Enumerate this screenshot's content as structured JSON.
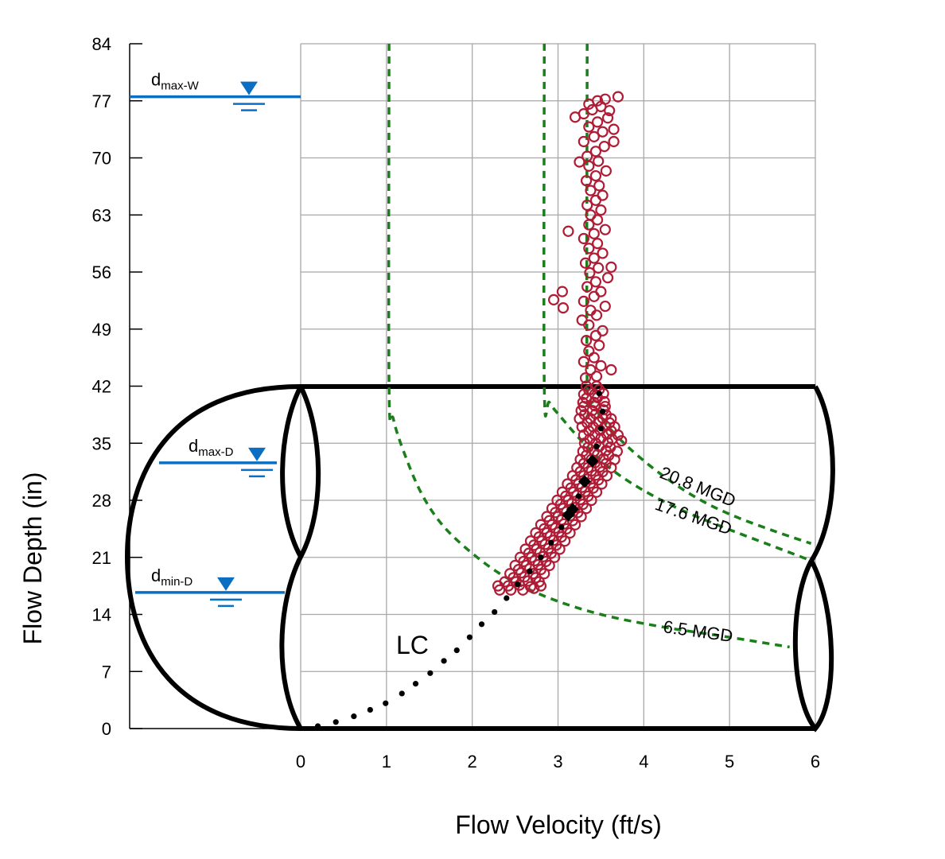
{
  "chart_data": {
    "type": "scatter",
    "xlabel": "Flow Velocity (ft/s)",
    "ylabel": "Flow Depth (in)",
    "xlim": [
      0,
      6
    ],
    "ylim": [
      0,
      84
    ],
    "x_ticks": [
      "0",
      "1",
      "2",
      "3",
      "4",
      "5",
      "6"
    ],
    "y_ticks": [
      "0",
      "7",
      "14",
      "21",
      "28",
      "35",
      "42",
      "49",
      "56",
      "63",
      "70",
      "77",
      "84"
    ],
    "grid": true,
    "colors": {
      "observed": "#b01c35",
      "flow_curves": "#1a7f1a",
      "water_level": "#0a6fc2",
      "pipe": "#000000"
    },
    "water_levels": [
      {
        "label": "d",
        "sub": "max-W",
        "depth": 77.5
      },
      {
        "label": "d",
        "sub": "max-D",
        "depth": 32.6
      },
      {
        "label": "d",
        "sub": "min-D",
        "depth": 16.7
      }
    ],
    "flow_curves": [
      {
        "label": "6.5 MGD",
        "points": [
          [
            1.03,
            84
          ],
          [
            1.03,
            42
          ],
          [
            1.08,
            38
          ],
          [
            1.2,
            34
          ],
          [
            1.4,
            29
          ],
          [
            1.65,
            25
          ],
          [
            2.0,
            21.5
          ],
          [
            2.4,
            18.5
          ],
          [
            2.9,
            16.0
          ],
          [
            3.5,
            14.0
          ],
          [
            4.2,
            12.5
          ],
          [
            5.0,
            11.2
          ],
          [
            5.7,
            10.0
          ]
        ]
      },
      {
        "label": "17.6 MGD",
        "points": [
          [
            2.84,
            84
          ],
          [
            2.84,
            42
          ],
          [
            2.9,
            40
          ],
          [
            3.05,
            38
          ],
          [
            3.3,
            35
          ],
          [
            3.6,
            32
          ],
          [
            3.95,
            29.5
          ],
          [
            4.4,
            27
          ],
          [
            4.9,
            24.8
          ],
          [
            5.45,
            22.6
          ],
          [
            5.95,
            20.6
          ]
        ]
      },
      {
        "label": "20.8 MGD",
        "points": [
          [
            3.34,
            84
          ],
          [
            3.34,
            42
          ],
          [
            3.4,
            40
          ],
          [
            3.55,
            37.5
          ],
          [
            3.82,
            34.5
          ],
          [
            4.2,
            31.2
          ],
          [
            4.6,
            28.4
          ],
          [
            5.0,
            26.3
          ],
          [
            5.5,
            24.3
          ],
          [
            5.95,
            22.7
          ]
        ]
      }
    ],
    "lc_label": "LC",
    "lc_points": [
      [
        0.2,
        0.3
      ],
      [
        0.41,
        0.8
      ],
      [
        0.62,
        1.5
      ],
      [
        0.81,
        2.3
      ],
      [
        0.99,
        3.1
      ],
      [
        1.18,
        4.3
      ],
      [
        1.34,
        5.5
      ],
      [
        1.51,
        6.8
      ],
      [
        1.67,
        8.3
      ],
      [
        1.82,
        9.6
      ],
      [
        1.97,
        11.2
      ],
      [
        2.11,
        12.8
      ],
      [
        2.26,
        14.3
      ],
      [
        2.4,
        16.0
      ],
      [
        2.53,
        17.7
      ],
      [
        2.67,
        19.3
      ],
      [
        2.8,
        21.0
      ],
      [
        2.92,
        22.8
      ],
      [
        3.04,
        24.7
      ],
      [
        3.24,
        28.5
      ],
      [
        3.45,
        34.6
      ],
      [
        3.5,
        36.8
      ],
      [
        3.52,
        38.9
      ],
      [
        3.48,
        41.1
      ]
    ],
    "diamond_points": [
      [
        3.4,
        32.8
      ],
      [
        3.31,
        30.3
      ],
      [
        3.17,
        26.9
      ],
      [
        3.12,
        26.2
      ]
    ],
    "observed_points": [
      [
        2.32,
        17
      ],
      [
        2.45,
        17
      ],
      [
        2.59,
        17
      ],
      [
        2.72,
        17.2
      ],
      [
        2.42,
        17.5
      ],
      [
        2.55,
        17.6
      ],
      [
        2.68,
        17.4
      ],
      [
        2.38,
        18
      ],
      [
        2.51,
        18
      ],
      [
        2.65,
        18.1
      ],
      [
        2.78,
        18
      ],
      [
        2.48,
        18.5
      ],
      [
        2.61,
        18.6
      ],
      [
        2.74,
        18.5
      ],
      [
        2.44,
        19
      ],
      [
        2.57,
        19.1
      ],
      [
        2.71,
        19
      ],
      [
        2.84,
        19
      ],
      [
        2.54,
        19.5
      ],
      [
        2.67,
        19.6
      ],
      [
        2.8,
        19.5
      ],
      [
        2.5,
        20
      ],
      [
        2.63,
        20
      ],
      [
        2.77,
        20.1
      ],
      [
        2.9,
        20
      ],
      [
        2.6,
        20.5
      ],
      [
        2.73,
        20.6
      ],
      [
        2.86,
        20.5
      ],
      [
        2.56,
        21
      ],
      [
        2.69,
        21
      ],
      [
        2.83,
        21.1
      ],
      [
        2.96,
        21
      ],
      [
        2.66,
        21.5
      ],
      [
        2.79,
        21.6
      ],
      [
        2.92,
        21.5
      ],
      [
        2.62,
        22
      ],
      [
        2.75,
        22
      ],
      [
        2.89,
        22.1
      ],
      [
        3.02,
        22
      ],
      [
        2.72,
        22.5
      ],
      [
        2.85,
        22.6
      ],
      [
        2.98,
        22.5
      ],
      [
        2.68,
        23
      ],
      [
        2.81,
        23
      ],
      [
        2.95,
        23.1
      ],
      [
        3.08,
        23
      ],
      [
        2.78,
        23.5
      ],
      [
        2.91,
        23.6
      ],
      [
        3.04,
        23.5
      ],
      [
        2.74,
        24
      ],
      [
        2.87,
        24
      ],
      [
        3.01,
        24.1
      ],
      [
        3.14,
        24
      ],
      [
        2.84,
        24.5
      ],
      [
        2.97,
        24.6
      ],
      [
        3.1,
        24.5
      ],
      [
        2.8,
        25
      ],
      [
        2.93,
        25
      ],
      [
        3.07,
        25.1
      ],
      [
        3.2,
        25
      ],
      [
        2.9,
        25.5
      ],
      [
        3.04,
        25.6
      ],
      [
        3.17,
        25.5
      ],
      [
        2.87,
        26
      ],
      [
        3.0,
        26
      ],
      [
        3.14,
        26.1
      ],
      [
        3.27,
        26
      ],
      [
        2.97,
        26.5
      ],
      [
        3.1,
        26.6
      ],
      [
        3.23,
        26.5
      ],
      [
        2.93,
        27
      ],
      [
        3.06,
        27
      ],
      [
        3.2,
        27.1
      ],
      [
        3.33,
        27
      ],
      [
        3.03,
        27.5
      ],
      [
        3.16,
        27.6
      ],
      [
        3.29,
        27.5
      ],
      [
        2.99,
        28
      ],
      [
        3.12,
        28
      ],
      [
        3.26,
        28.1
      ],
      [
        3.39,
        28
      ],
      [
        3.09,
        28.5
      ],
      [
        3.22,
        28.6
      ],
      [
        3.35,
        28.5
      ],
      [
        3.05,
        29
      ],
      [
        3.18,
        29
      ],
      [
        3.32,
        29.1
      ],
      [
        3.45,
        29
      ],
      [
        3.15,
        29.5
      ],
      [
        3.28,
        29.6
      ],
      [
        3.41,
        29.5
      ],
      [
        3.11,
        30
      ],
      [
        3.24,
        30
      ],
      [
        3.38,
        30.1
      ],
      [
        3.51,
        30
      ],
      [
        3.21,
        30.5
      ],
      [
        3.34,
        30.6
      ],
      [
        3.47,
        30.5
      ],
      [
        3.17,
        31
      ],
      [
        3.3,
        31
      ],
      [
        3.44,
        31.1
      ],
      [
        3.57,
        31
      ],
      [
        3.26,
        31.5
      ],
      [
        3.39,
        31.6
      ],
      [
        3.52,
        31.5
      ],
      [
        3.22,
        32
      ],
      [
        3.35,
        32
      ],
      [
        3.49,
        32.1
      ],
      [
        3.62,
        32
      ],
      [
        3.3,
        32.5
      ],
      [
        3.43,
        32.6
      ],
      [
        3.56,
        32.5
      ],
      [
        3.26,
        33
      ],
      [
        3.39,
        33
      ],
      [
        3.53,
        33.1
      ],
      [
        3.66,
        33
      ],
      [
        3.33,
        33.5
      ],
      [
        3.46,
        33.6
      ],
      [
        3.59,
        33.5
      ],
      [
        3.29,
        34
      ],
      [
        3.42,
        34
      ],
      [
        3.56,
        34.1
      ],
      [
        3.69,
        34
      ],
      [
        3.35,
        34.5
      ],
      [
        3.48,
        34.6
      ],
      [
        3.61,
        34.5
      ],
      [
        3.31,
        35
      ],
      [
        3.44,
        35
      ],
      [
        3.58,
        35.1
      ],
      [
        3.74,
        35.3
      ],
      [
        3.37,
        35.5
      ],
      [
        3.5,
        35.6
      ],
      [
        3.63,
        35.5
      ],
      [
        3.3,
        36
      ],
      [
        3.43,
        36
      ],
      [
        3.57,
        36.1
      ],
      [
        3.7,
        36
      ],
      [
        3.36,
        36.5
      ],
      [
        3.49,
        36.6
      ],
      [
        3.62,
        36.5
      ],
      [
        3.28,
        37
      ],
      [
        3.41,
        37
      ],
      [
        3.55,
        37.1
      ],
      [
        3.66,
        37
      ],
      [
        3.34,
        37.5
      ],
      [
        3.47,
        37.6
      ],
      [
        3.6,
        37.5
      ],
      [
        3.25,
        38
      ],
      [
        3.38,
        38
      ],
      [
        3.52,
        38.1
      ],
      [
        3.62,
        38
      ],
      [
        3.31,
        38.5
      ],
      [
        3.44,
        38.6
      ],
      [
        3.56,
        38.5
      ],
      [
        3.27,
        39
      ],
      [
        3.4,
        39
      ],
      [
        3.53,
        39.1
      ],
      [
        3.3,
        39.5
      ],
      [
        3.43,
        39.6
      ],
      [
        3.55,
        39.5
      ],
      [
        3.29,
        40
      ],
      [
        3.42,
        40
      ],
      [
        3.54,
        40.1
      ],
      [
        3.33,
        40.5
      ],
      [
        3.46,
        40.6
      ],
      [
        3.3,
        41
      ],
      [
        3.43,
        41
      ],
      [
        3.53,
        41.1
      ],
      [
        3.36,
        41.5
      ],
      [
        3.48,
        41.6
      ],
      [
        3.33,
        42
      ],
      [
        3.45,
        42
      ],
      [
        3.32,
        43
      ],
      [
        3.45,
        43.2
      ],
      [
        3.38,
        44
      ],
      [
        3.5,
        44.5
      ],
      [
        3.3,
        45
      ],
      [
        3.42,
        45.5
      ],
      [
        3.36,
        46.3
      ],
      [
        3.48,
        47
      ],
      [
        3.33,
        47.6
      ],
      [
        3.44,
        48.2
      ],
      [
        3.52,
        48.8
      ],
      [
        3.36,
        49.5
      ],
      [
        3.28,
        50.1
      ],
      [
        3.45,
        50.7
      ],
      [
        3.38,
        51.3
      ],
      [
        3.55,
        51.8
      ],
      [
        3.3,
        52.4
      ],
      [
        3.42,
        53
      ],
      [
        3.5,
        53.6
      ],
      [
        3.34,
        54.2
      ],
      [
        3.44,
        54.8
      ],
      [
        3.58,
        55.3
      ],
      [
        3.37,
        55.9
      ],
      [
        3.47,
        56.5
      ],
      [
        3.32,
        57.1
      ],
      [
        3.42,
        57.7
      ],
      [
        3.52,
        58.3
      ],
      [
        3.36,
        58.9
      ],
      [
        3.46,
        59.5
      ],
      [
        3.3,
        60.1
      ],
      [
        3.42,
        60.7
      ],
      [
        3.55,
        61.2
      ],
      [
        3.36,
        61.8
      ],
      [
        3.46,
        62.4
      ],
      [
        3.38,
        63
      ],
      [
        3.5,
        63.6
      ],
      [
        3.34,
        64.2
      ],
      [
        3.44,
        64.8
      ],
      [
        3.52,
        65.4
      ],
      [
        3.38,
        66
      ],
      [
        3.48,
        66.6
      ],
      [
        3.33,
        67.2
      ],
      [
        3.44,
        67.8
      ],
      [
        3.56,
        68.4
      ],
      [
        3.36,
        69
      ],
      [
        3.47,
        69.6
      ],
      [
        3.34,
        70.2
      ],
      [
        3.44,
        70.8
      ],
      [
        3.54,
        71.4
      ],
      [
        3.3,
        72
      ],
      [
        3.42,
        72.6
      ],
      [
        3.52,
        73.2
      ],
      [
        3.36,
        73.8
      ],
      [
        3.46,
        74.4
      ],
      [
        3.58,
        74.9
      ],
      [
        3.3,
        75.4
      ],
      [
        3.4,
        75.9
      ],
      [
        3.5,
        76.3
      ],
      [
        3.6,
        75.8
      ],
      [
        3.36,
        76.6
      ],
      [
        3.46,
        77
      ],
      [
        3.55,
        77.2
      ],
      [
        3.12,
        61
      ],
      [
        2.95,
        52.6
      ],
      [
        3.05,
        53.6
      ],
      [
        3.06,
        51.6
      ],
      [
        3.65,
        72
      ],
      [
        3.7,
        77.5
      ],
      [
        3.65,
        73.5
      ],
      [
        3.2,
        75
      ],
      [
        3.25,
        69.5
      ],
      [
        3.62,
        56.6
      ],
      [
        3.62,
        44
      ],
      [
        2.8,
        17.5
      ],
      [
        2.3,
        17.5
      ]
    ]
  }
}
